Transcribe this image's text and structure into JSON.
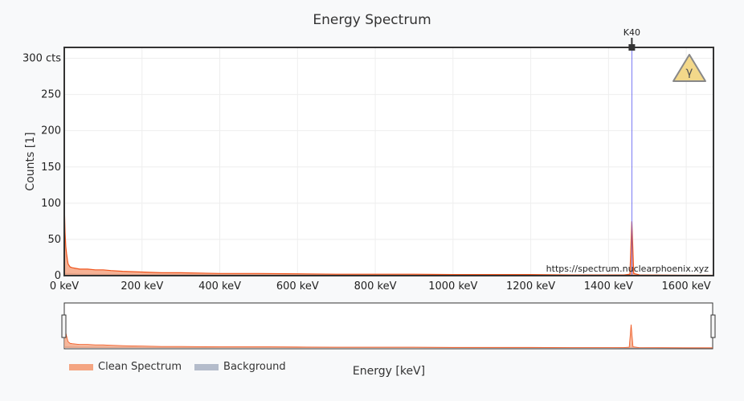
{
  "chart_data": {
    "type": "area",
    "title": "Energy Spectrum",
    "xlabel": "Energy [keV]",
    "ylabel": "Counts [1]",
    "xlim": [
      0,
      1670
    ],
    "ylim": [
      0,
      315
    ],
    "x_ticks": [
      {
        "value": 0,
        "label": "0 keV"
      },
      {
        "value": 200,
        "label": "200 keV"
      },
      {
        "value": 400,
        "label": "400 keV"
      },
      {
        "value": 600,
        "label": "600 keV"
      },
      {
        "value": 800,
        "label": "800 keV"
      },
      {
        "value": 1000,
        "label": "1000 keV"
      },
      {
        "value": 1200,
        "label": "1200 keV"
      },
      {
        "value": 1400,
        "label": "1400 keV"
      },
      {
        "value": 1600,
        "label": "1600 keV"
      }
    ],
    "y_ticks": [
      {
        "value": 0,
        "label": "0"
      },
      {
        "value": 50,
        "label": "50"
      },
      {
        "value": 100,
        "label": "100"
      },
      {
        "value": 150,
        "label": "150"
      },
      {
        "value": 200,
        "label": "200"
      },
      {
        "value": 250,
        "label": "250"
      },
      {
        "value": 300,
        "label": "300 cts"
      }
    ],
    "grid": true,
    "legend_position": "bottom-left",
    "series": [
      {
        "name": "Clean Spectrum",
        "color": "#f0541c",
        "fill": "#f4a582",
        "x": [
          0,
          2,
          4,
          6,
          8,
          10,
          15,
          20,
          30,
          40,
          60,
          80,
          100,
          120,
          150,
          200,
          250,
          300,
          400,
          500,
          600,
          700,
          800,
          900,
          1000,
          1100,
          1200,
          1300,
          1400,
          1440,
          1455,
          1460,
          1465,
          1480,
          1600,
          1670
        ],
        "y": [
          100,
          60,
          40,
          30,
          22,
          16,
          12,
          11,
          10,
          9,
          9,
          8,
          8,
          7,
          6,
          5,
          4,
          4,
          3,
          3,
          2.5,
          2,
          2,
          2,
          1.5,
          1.5,
          1.5,
          1,
          1,
          1,
          2,
          75,
          3,
          1,
          0.5,
          0.5
        ]
      },
      {
        "name": "Background",
        "color": "#8a95a5",
        "fill": "#b4bccb",
        "x": [
          0,
          10,
          50,
          100,
          200,
          400,
          800,
          1200,
          1460,
          1670
        ],
        "y": [
          3,
          3,
          2,
          2,
          1.5,
          1,
          0.8,
          0.6,
          0.5,
          0.3
        ]
      }
    ],
    "annotations": [
      {
        "label": "K40",
        "x": 1460
      }
    ],
    "watermark": "https://spectrum.nuclearphoenix.xyz",
    "colors": {
      "k40_line": "#5a5af0",
      "marker": "#333333",
      "warning": "#f3d88a"
    }
  }
}
